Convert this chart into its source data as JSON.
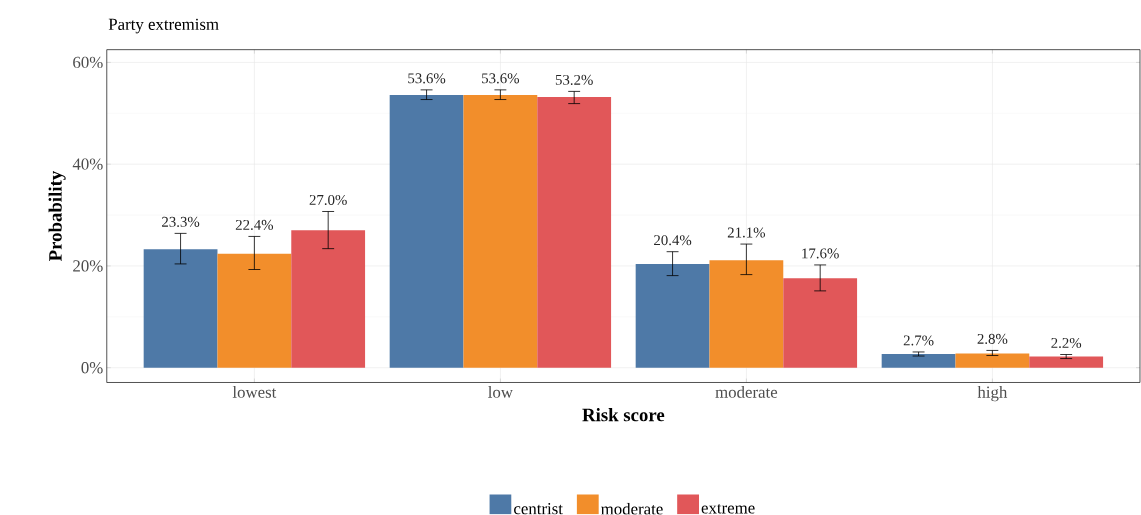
{
  "chart_data": {
    "type": "bar",
    "title": "Party extremism",
    "xlabel": "Risk score",
    "ylabel": "Probability",
    "categories": [
      "lowest",
      "low",
      "moderate",
      "high"
    ],
    "series": [
      {
        "name": "centrist",
        "color": "#4e79a7",
        "values": [
          23.3,
          53.6,
          20.4,
          2.7
        ],
        "value_labels": [
          "23.3%",
          "53.6%",
          "20.4%",
          "2.7%"
        ],
        "errors": [
          [
            20.4,
            26.4
          ],
          [
            52.7,
            54.6
          ],
          [
            18.1,
            22.8
          ],
          [
            2.3,
            3.1
          ]
        ]
      },
      {
        "name": "moderate",
        "color": "#f28e2b",
        "values": [
          22.4,
          53.6,
          21.1,
          2.8
        ],
        "value_labels": [
          "22.4%",
          "53.6%",
          "21.1%",
          "2.8%"
        ],
        "errors": [
          [
            19.3,
            25.8
          ],
          [
            52.7,
            54.6
          ],
          [
            18.3,
            24.3
          ],
          [
            2.4,
            3.4
          ]
        ]
      },
      {
        "name": "extreme",
        "color": "#e15759",
        "values": [
          27.0,
          53.2,
          17.6,
          2.2
        ],
        "value_labels": [
          "27.0%",
          "53.2%",
          "17.6%",
          "2.2%"
        ],
        "errors": [
          [
            23.4,
            30.7
          ],
          [
            51.9,
            54.3
          ],
          [
            15.1,
            20.2
          ],
          [
            1.8,
            2.6
          ]
        ]
      }
    ],
    "ylim": [
      -2.9,
      62.5
    ],
    "yticks": [
      {
        "value": 0,
        "label": "0%"
      },
      {
        "value": 20,
        "label": "20%"
      },
      {
        "value": 40,
        "label": "40%"
      },
      {
        "value": 60,
        "label": "60%"
      }
    ],
    "grid": true,
    "legend": "bottom"
  }
}
